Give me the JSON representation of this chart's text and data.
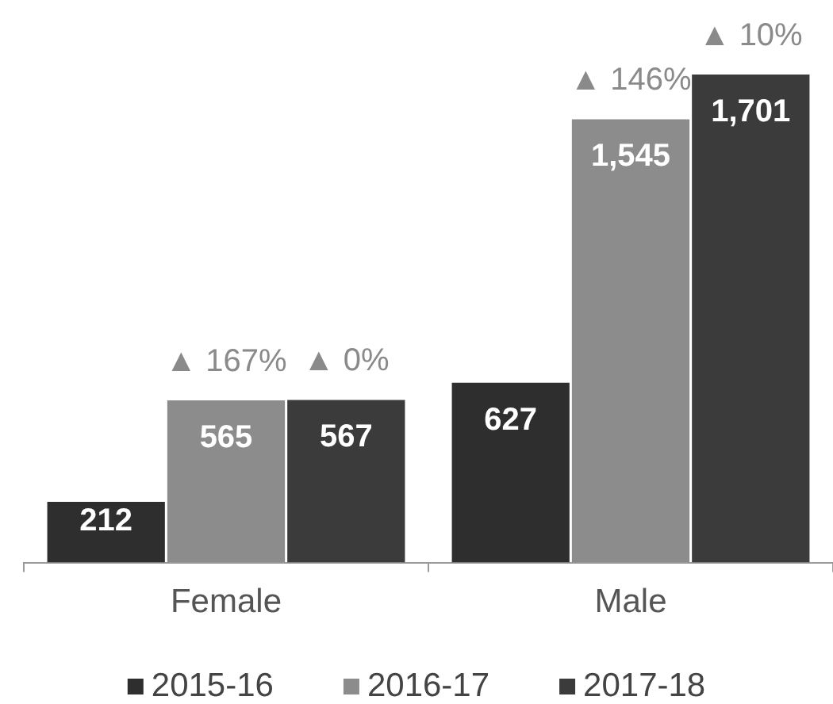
{
  "chart_data": {
    "type": "bar",
    "categories": [
      "Female",
      "Male"
    ],
    "series": [
      {
        "name": "2015-16",
        "color": "#2e2e2e",
        "values": [
          212,
          627
        ],
        "value_labels": [
          "212",
          "627"
        ]
      },
      {
        "name": "2016-17",
        "color": "#8c8c8c",
        "values": [
          565,
          1545
        ],
        "value_labels": [
          "565",
          "1,545"
        ]
      },
      {
        "name": "2017-18",
        "color": "#3b3b3b",
        "values": [
          567,
          1701
        ],
        "value_labels": [
          "567",
          "1,701"
        ]
      }
    ],
    "legend": "bottom",
    "annotations": [
      "▲ 167%",
      "▲ 0%",
      "▲ 146%",
      "▲ 10%"
    ]
  }
}
